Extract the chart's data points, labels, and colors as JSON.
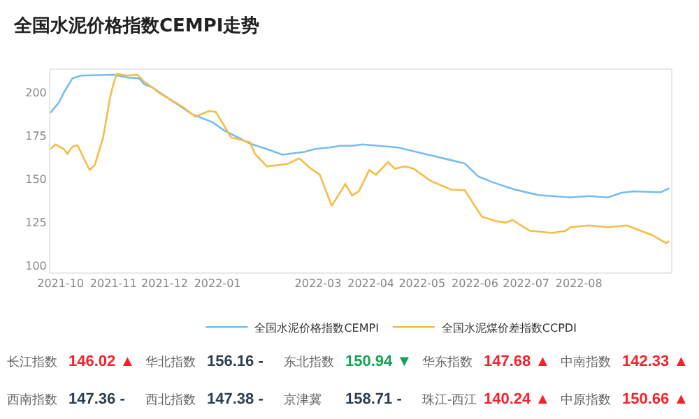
{
  "chart_data": [
    {
      "type": "line",
      "title": "全国水泥价格指数CEMPI走势",
      "x": [
        "2021-09-25",
        "2021-09-30",
        "2021-10-03",
        "2021-10-08",
        "2021-10-13",
        "2021-11-01",
        "2021-11-09",
        "2021-11-16",
        "2021-11-19",
        "2021-11-24",
        "2021-11-28",
        "2021-12-07",
        "2021-12-17",
        "2021-12-29",
        "2022-01-05",
        "2022-01-20",
        "2022-01-30",
        "2022-02-08",
        "2022-02-21",
        "2022-02-27",
        "2022-03-09",
        "2022-03-14",
        "2022-03-21",
        "2022-03-27",
        "2022-04-17",
        "2022-05-01",
        "2022-05-18",
        "2022-05-26",
        "2022-06-03",
        "2022-06-11",
        "2022-06-24",
        "2022-07-08",
        "2022-07-27",
        "2022-08-07",
        "2022-08-18",
        "2022-08-26",
        "2022-09-02",
        "2022-09-18",
        "2022-09-23"
      ],
      "series": [
        {
          "name": "全国水泥价格指数CEMPI",
          "color": "#74bdf2",
          "values": [
            188.1,
            194.1,
            200,
            208.1,
            209.7,
            210.2,
            208.6,
            208.1,
            204.8,
            202.7,
            200,
            194.1,
            187.4,
            182.8,
            178,
            170.4,
            167.2,
            164,
            165.6,
            167.2,
            168.3,
            169.1,
            169.1,
            169.9,
            168.1,
            164.8,
            160.8,
            158.9,
            151.4,
            148.2,
            143.9,
            140.7,
            139.3,
            140.1,
            139.3,
            142,
            142.8,
            142.3,
            144.7
          ]
        },
        {
          "name": "全国水泥煤价差指数CCPDI",
          "color": "#f7bc45",
          "x": [
            "2021-09-25",
            "2021-09-28",
            "2021-10-03",
            "2021-10-05",
            "2021-10-08",
            "2021-10-11",
            "2021-10-14",
            "2021-10-18",
            "2021-10-21",
            "2021-10-26",
            "2021-10-30",
            "2021-11-01",
            "2021-11-03",
            "2021-11-09",
            "2021-11-15",
            "2021-11-19",
            "2021-11-24",
            "2021-11-28",
            "2021-12-12",
            "2021-12-19",
            "2021-12-27",
            "2021-12-31",
            "2022-01-05",
            "2022-01-09",
            "2022-01-20",
            "2022-01-23",
            "2022-01-30",
            "2022-02-11",
            "2022-02-18",
            "2022-02-24",
            "2022-03-02",
            "2022-03-09",
            "2022-03-17",
            "2022-03-21",
            "2022-03-25",
            "2022-03-31",
            "2022-04-04",
            "2022-04-11",
            "2022-04-15",
            "2022-04-21",
            "2022-04-26",
            "2022-05-06",
            "2022-05-18",
            "2022-05-26",
            "2022-06-05",
            "2022-06-14",
            "2022-06-19",
            "2022-06-23",
            "2022-07-03",
            "2022-07-16",
            "2022-07-24",
            "2022-07-27",
            "2022-08-07",
            "2022-08-18",
            "2022-08-29",
            "2022-09-13",
            "2022-09-21",
            "2022-09-23"
          ],
          "values": [
            167.2,
            169.9,
            167.2,
            164.5,
            168.6,
            169.4,
            163.2,
            155.2,
            157.8,
            174,
            196.8,
            204.8,
            210.7,
            209.7,
            210.2,
            206.2,
            202.7,
            199.5,
            191.4,
            186,
            189.2,
            188.7,
            180.6,
            173.9,
            171.2,
            164.5,
            157.2,
            158.6,
            161.8,
            156.5,
            152.4,
            134.4,
            147,
            140.3,
            143,
            155.1,
            152.4,
            159.7,
            155.9,
            157.2,
            155.9,
            148.9,
            143.8,
            143.5,
            128.2,
            125.5,
            124.7,
            126.3,
            120.1,
            118.8,
            119.9,
            122,
            123.1,
            122,
            123.1,
            117.5,
            112.9,
            114
          ]
        }
      ],
      "xlim": [
        "2021-09-25",
        "2022-09-24"
      ],
      "xticks": [
        {
          "value": "2021-10-01",
          "label": "2021-10"
        },
        {
          "value": "2021-11-01",
          "label": "2021-11"
        },
        {
          "value": "2021-12-01",
          "label": "2021-12"
        },
        {
          "value": "2022-01-01",
          "label": "2022-01"
        },
        {
          "value": "2022-03-01",
          "label": "2022-03"
        },
        {
          "value": "2022-04-01",
          "label": "2022-04"
        },
        {
          "value": "2022-05-01",
          "label": "2022-05"
        },
        {
          "value": "2022-06-01",
          "label": "2022-06"
        },
        {
          "value": "2022-07-01",
          "label": "2022-07"
        },
        {
          "value": "2022-08-01",
          "label": "2022-08"
        }
      ],
      "ylim": [
        96,
        213
      ],
      "yticks": [
        100,
        125,
        150,
        175,
        200
      ],
      "grid": false,
      "legend": "bottom",
      "marker": "none",
      "line_style": "solid"
    },
    {
      "type": "other",
      "annotations": [
        "长江指数",
        "146.02 ▲",
        "华北指数",
        "156.16 -",
        "东北指数",
        "150.94 ▼",
        "华东指数",
        "147.68 ▲",
        "中南指数",
        "142.33 ▲",
        "西南指数",
        "147.36 -",
        "西北指数",
        "147.38 -",
        "京津冀",
        "158.71 -",
        "珠江-西江",
        "140.24 ▲",
        "中原指数",
        "150.66 ▲"
      ],
      "colors": [
        "#f5222d",
        "#2c3e50",
        "#13a454",
        "#f5222d",
        "#f5222d",
        "#2c3e50",
        "#2c3e50",
        "#2c3e50",
        "#f5222d",
        "#f5222d"
      ]
    }
  ]
}
